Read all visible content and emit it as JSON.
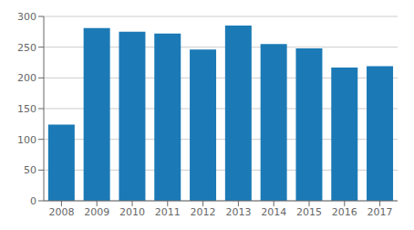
{
  "chart_data": {
    "type": "bar",
    "categories": [
      "2008",
      "2009",
      "2010",
      "2011",
      "2012",
      "2013",
      "2014",
      "2015",
      "2016",
      "2017"
    ],
    "values": [
      124,
      281,
      275,
      272,
      246,
      285,
      255,
      248,
      217,
      219
    ],
    "color": "#1b7ab5",
    "ylim": [
      0,
      300
    ],
    "yticks": [
      0,
      50,
      100,
      150,
      200,
      250,
      300
    ],
    "grid": true
  }
}
